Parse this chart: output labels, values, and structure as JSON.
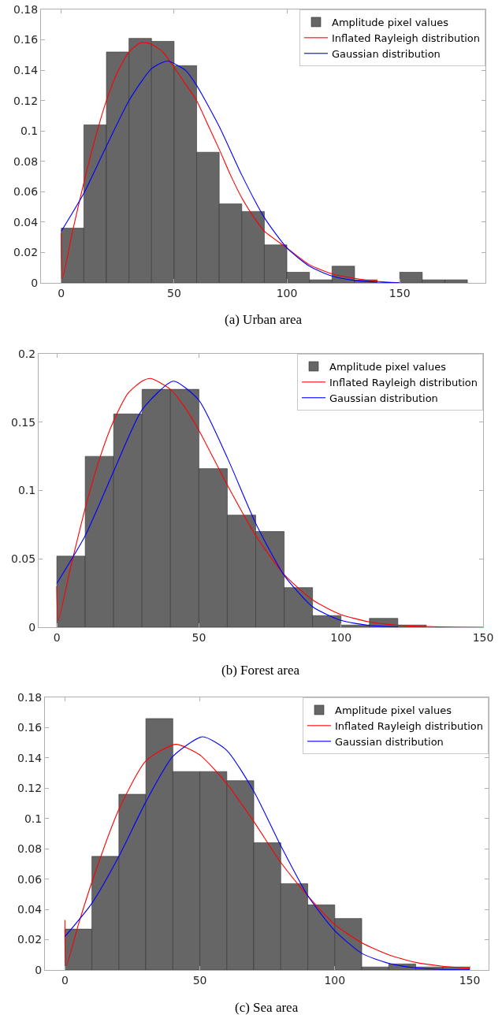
{
  "chart_data": [
    {
      "type": "histogram",
      "annotations": [
        "(a) Urban area"
      ],
      "bins": [
        0,
        10,
        20,
        30,
        40,
        50,
        60,
        70,
        80,
        90,
        100,
        110,
        120,
        130,
        140,
        150,
        160,
        170,
        180
      ],
      "xlim": [
        -9,
        188
      ],
      "xticks": [
        0,
        50,
        100,
        150
      ],
      "ylim": [
        0,
        0.18
      ],
      "yticks": [
        0,
        0.02,
        0.04,
        0.06,
        0.08,
        0.1,
        0.12,
        0.14,
        0.16,
        0.18
      ],
      "grid": false,
      "legend": "top right",
      "series": [
        {
          "name": "Amplitude pixel values",
          "type": "histogram",
          "color": "#666666",
          "values": [
            0.036,
            0.104,
            0.152,
            0.161,
            0.159,
            0.143,
            0.086,
            0.052,
            0.047,
            0.025,
            0.007,
            0.002,
            0.011,
            0.002,
            null,
            0.007,
            0.002,
            0.002
          ]
        },
        {
          "name": "Inflated Rayleigh distribution",
          "type": "line",
          "color": "#ff0000",
          "x": [
            0,
            0.5,
            5,
            10,
            15,
            20,
            25,
            30,
            35,
            38,
            40,
            45,
            50,
            55,
            60,
            65,
            70,
            75,
            80,
            85,
            90,
            100,
            110,
            120,
            130,
            140,
            150
          ],
          "values": [
            0.033,
            0.003,
            0.034,
            0.066,
            0.095,
            0.12,
            0.139,
            0.152,
            0.158,
            0.158,
            0.157,
            0.152,
            0.142,
            0.131,
            0.12,
            0.104,
            0.088,
            0.071,
            0.056,
            0.044,
            0.034,
            0.023,
            0.012,
            0.006,
            0.003,
            0.001,
            0
          ]
        },
        {
          "name": "Gaussian distribution",
          "type": "line",
          "color": "#0000ff",
          "x": [
            0,
            10,
            20,
            30,
            40,
            47,
            55,
            60,
            70,
            80,
            90,
            100,
            110,
            120,
            130,
            140,
            150
          ],
          "values": [
            0.034,
            0.059,
            0.09,
            0.12,
            0.141,
            0.146,
            0.14,
            0.13,
            0.103,
            0.071,
            0.043,
            0.023,
            0.011,
            0.0045,
            0.0016,
            0.0005,
            0.0001
          ]
        }
      ]
    },
    {
      "type": "histogram",
      "annotations": [
        "(b) Forest area"
      ],
      "bins": [
        0,
        10,
        20,
        30,
        40,
        50,
        60,
        70,
        80,
        90,
        100,
        110,
        120,
        130
      ],
      "xlim": [
        -6.4,
        150
      ],
      "xticks": [
        0,
        50,
        100,
        150
      ],
      "ylim": [
        0,
        0.2
      ],
      "yticks": [
        0,
        0.05,
        0.1,
        0.15,
        0.2
      ],
      "grid": false,
      "legend": "top right",
      "series": [
        {
          "name": "Amplitude pixel values",
          "type": "histogram",
          "color": "#666666",
          "values": [
            0.052,
            0.125,
            0.156,
            0.174,
            0.174,
            0.116,
            0.082,
            0.07,
            0.029,
            0.0085,
            0.0016,
            0.0065,
            0.0016
          ]
        },
        {
          "name": "Inflated Rayleigh distribution",
          "type": "line",
          "color": "#ff0000",
          "x": [
            0,
            0.5,
            5,
            10,
            15,
            20,
            25,
            30,
            33,
            40,
            45,
            50,
            60,
            70,
            80,
            90,
            100,
            110,
            120,
            130,
            140,
            150
          ],
          "values": [
            0.03,
            0.005,
            0.045,
            0.087,
            0.123,
            0.151,
            0.171,
            0.18,
            0.182,
            0.174,
            0.161,
            0.144,
            0.104,
            0.067,
            0.0385,
            0.02,
            0.0092,
            0.0039,
            0.0014,
            0.0005,
            0.0001,
            0
          ]
        },
        {
          "name": "Gaussian distribution",
          "type": "line",
          "color": "#0000ff",
          "x": [
            0,
            10,
            20,
            30,
            41,
            50,
            60,
            70,
            80,
            90,
            100,
            110,
            120
          ],
          "values": [
            0.032,
            0.067,
            0.114,
            0.159,
            0.18,
            0.166,
            0.124,
            0.076,
            0.038,
            0.015,
            0.005,
            0.0013,
            0.0003
          ]
        }
      ]
    },
    {
      "type": "histogram",
      "annotations": [
        "(c) Sea area"
      ],
      "bins": [
        0,
        10,
        20,
        30,
        40,
        50,
        60,
        70,
        80,
        90,
        100,
        110,
        120,
        130,
        140,
        150
      ],
      "xlim": [
        -7.4,
        157
      ],
      "xticks": [
        0,
        50,
        100,
        150
      ],
      "ylim": [
        0,
        0.18
      ],
      "yticks": [
        0,
        0.02,
        0.04,
        0.06,
        0.08,
        0.1,
        0.12,
        0.14,
        0.16,
        0.18
      ],
      "grid": false,
      "legend": "top right",
      "series": [
        {
          "name": "Amplitude pixel values",
          "type": "histogram",
          "color": "#666666",
          "values": [
            0.027,
            0.075,
            0.116,
            0.166,
            0.131,
            0.131,
            0.125,
            0.084,
            0.057,
            0.043,
            0.034,
            0.002,
            0.004,
            0.002,
            0.002
          ]
        },
        {
          "name": "Inflated Rayleigh distribution",
          "type": "line",
          "color": "#ff0000",
          "x": [
            0,
            0.5,
            5,
            10,
            20,
            30,
            41,
            50,
            60,
            70,
            80,
            90,
            100,
            110,
            120,
            130,
            140,
            150
          ],
          "values": [
            0.033,
            0.003,
            0.03,
            0.058,
            0.106,
            0.138,
            0.149,
            0.142,
            0.123,
            0.098,
            0.071,
            0.049,
            0.03,
            0.018,
            0.01,
            0.005,
            0.0025,
            0.0011
          ]
        },
        {
          "name": "Gaussian distribution",
          "type": "line",
          "color": "#0000ff",
          "x": [
            0,
            10,
            20,
            30,
            40,
            51,
            60,
            70,
            80,
            90,
            100,
            110,
            120,
            130,
            140,
            150
          ],
          "values": [
            0.022,
            0.044,
            0.075,
            0.111,
            0.141,
            0.154,
            0.145,
            0.118,
            0.082,
            0.049,
            0.026,
            0.011,
            0.0044,
            0.0014,
            0.0004,
            0.0001
          ]
        }
      ]
    }
  ]
}
